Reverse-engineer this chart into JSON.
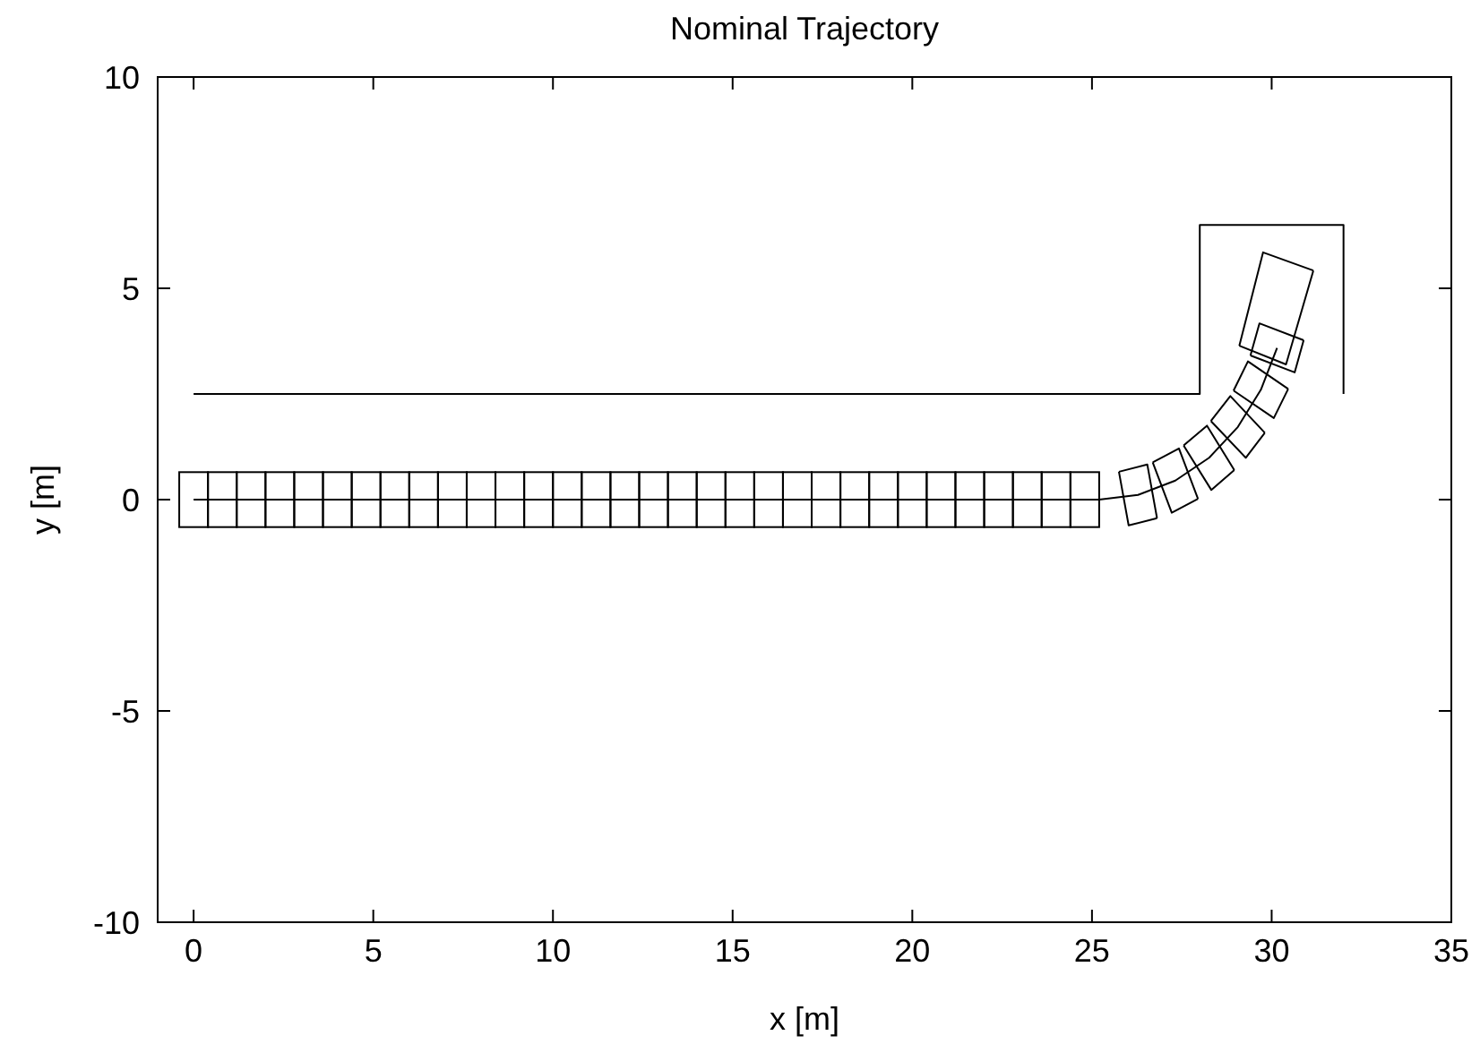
{
  "chart_data": {
    "type": "line",
    "title": "Nominal Trajectory",
    "xlabel": "x [m]",
    "ylabel": "y [m]",
    "xlim": [
      -1,
      35
    ],
    "ylim": [
      -10,
      10
    ],
    "xticks": [
      0,
      5,
      10,
      15,
      20,
      25,
      30,
      35
    ],
    "yticks": [
      -10,
      -5,
      0,
      5,
      10
    ],
    "grid": false,
    "series": [
      {
        "color": "#000000",
        "x": [
          0,
          28,
          28,
          32,
          32
        ],
        "values": [
          2.5,
          2.5,
          6.5,
          6.5,
          2.5
        ]
      },
      {
        "type": "bar",
        "color": "#000000",
        "x": [
          0,
          0.8,
          1.6,
          2.4,
          3.2,
          4.0,
          4.8,
          5.6,
          6.4,
          7.2,
          8.0,
          8.8,
          9.6,
          10.4,
          11.2,
          12.0,
          12.8,
          13.6,
          14.4,
          15.2,
          16.0,
          16.8,
          17.6,
          18.4,
          19.2,
          20.0,
          20.8,
          21.6,
          22.4,
          23.2,
          24.0,
          24.8
        ],
        "base": [
          -0.65,
          -0.65,
          -0.65,
          -0.65,
          -0.65,
          -0.65,
          -0.65,
          -0.65,
          -0.65,
          -0.65,
          -0.65,
          -0.65,
          -0.65,
          -0.65,
          -0.65,
          -0.65,
          -0.65,
          -0.65,
          -0.65,
          -0.65,
          -0.65,
          -0.65,
          -0.65,
          -0.65,
          -0.65,
          -0.65,
          -0.65,
          -0.65,
          -0.65,
          -0.65,
          -0.65,
          -0.65
        ],
        "values": [
          1.3,
          1.3,
          1.3,
          1.3,
          1.3,
          1.3,
          1.3,
          1.3,
          1.3,
          1.3,
          1.3,
          1.3,
          1.3,
          1.3,
          1.3,
          1.3,
          1.3,
          1.3,
          1.3,
          1.3,
          1.3,
          1.3,
          1.3,
          1.3,
          1.3,
          1.3,
          1.3,
          1.3,
          1.3,
          1.3,
          1.3,
          1.3
        ]
      },
      {
        "color": "#000000",
        "x": [
          0,
          25.2,
          26.28,
          27.32,
          28.26,
          29.06,
          29.7,
          30.15
        ],
        "values": [
          0,
          0,
          0.11,
          0.45,
          0.99,
          1.72,
          2.6,
          3.59
        ]
      },
      {
        "color": "#000000",
        "x": [
          25.75,
          26.54,
          26.81
        ],
        "values": [
          0.66,
          0.83,
          -0.44
        ]
      },
      {
        "color": "#000000",
        "x": [
          25.75,
          26.02,
          26.81
        ],
        "values": [
          0.66,
          -0.61,
          -0.44
        ]
      },
      {
        "color": "#000000",
        "x": [
          26.69,
          27.42,
          27.95
        ],
        "values": [
          0.88,
          1.21,
          0.02
        ]
      },
      {
        "color": "#000000",
        "x": [
          26.69,
          27.22,
          27.95
        ],
        "values": [
          0.88,
          -0.31,
          0.02
        ]
      },
      {
        "color": "#000000",
        "x": [
          27.55,
          28.2,
          28.96
        ],
        "values": [
          1.28,
          1.75,
          0.7
        ]
      },
      {
        "color": "#000000",
        "x": [
          27.55,
          28.32,
          28.96
        ],
        "values": [
          1.28,
          0.23,
          0.7
        ]
      },
      {
        "color": "#000000",
        "x": [
          28.31,
          28.85,
          29.81
        ],
        "values": [
          1.86,
          2.45,
          1.58
        ]
      },
      {
        "color": "#000000",
        "x": [
          28.31,
          29.28,
          29.81
        ],
        "values": [
          1.86,
          0.99,
          1.58
        ]
      },
      {
        "color": "#000000",
        "x": [
          28.94,
          29.34,
          30.46
        ],
        "values": [
          2.58,
          3.27,
          2.62
        ]
      },
      {
        "color": "#000000",
        "x": [
          28.94,
          30.06,
          30.46
        ],
        "values": [
          2.58,
          1.93,
          2.62
        ]
      },
      {
        "color": "#000000",
        "x": [
          29.41,
          29.66,
          30.89
        ],
        "values": [
          3.41,
          4.17,
          3.77
        ]
      },
      {
        "color": "#000000",
        "x": [
          29.41,
          30.64,
          30.89
        ],
        "values": [
          3.41,
          3.01,
          3.77
        ]
      },
      {
        "color": "#000000",
        "x": [
          29.1,
          29.76,
          31.16
        ],
        "values": [
          3.64,
          5.85,
          5.42
        ]
      },
      {
        "color": "#000000",
        "x": [
          29.1,
          30.4,
          31.16
        ],
        "values": [
          3.64,
          3.2,
          5.42
        ]
      }
    ]
  }
}
